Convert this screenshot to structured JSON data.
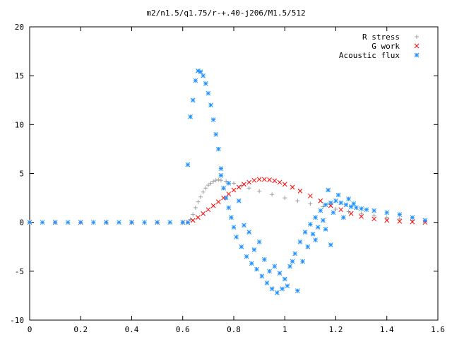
{
  "chart_data": {
    "type": "scatter",
    "title": "m2/n1.5/q1.75/r-+.40-j206/M1.5/512",
    "xlabel": "",
    "ylabel": "",
    "xlim": [
      0,
      1.6
    ],
    "ylim": [
      -10,
      20
    ],
    "x_ticks": [
      "0",
      "0.2",
      "0.4",
      "0.6",
      "0.8",
      "1",
      "1.2",
      "1.4",
      "1.6"
    ],
    "y_ticks": [
      "-10",
      "-5",
      "0",
      "5",
      "10",
      "15",
      "20"
    ],
    "grid": false,
    "legend_position": "top-right",
    "series": [
      {
        "name": "R stress",
        "marker": "plus",
        "color": "#a0a0a0",
        "points": [
          [
            0.0,
            0.0
          ],
          [
            0.1,
            0.0
          ],
          [
            0.2,
            0.0
          ],
          [
            0.3,
            0.0
          ],
          [
            0.4,
            0.0
          ],
          [
            0.5,
            0.0
          ],
          [
            0.6,
            0.0
          ],
          [
            0.62,
            0.0
          ],
          [
            0.63,
            0.3
          ],
          [
            0.64,
            0.8
          ],
          [
            0.65,
            1.5
          ],
          [
            0.66,
            2.1
          ],
          [
            0.67,
            2.6
          ],
          [
            0.68,
            3.1
          ],
          [
            0.69,
            3.5
          ],
          [
            0.7,
            3.8
          ],
          [
            0.71,
            4.0
          ],
          [
            0.72,
            4.2
          ],
          [
            0.73,
            4.3
          ],
          [
            0.74,
            4.35
          ],
          [
            0.75,
            4.3
          ],
          [
            0.77,
            4.2
          ],
          [
            0.8,
            4.0
          ],
          [
            0.83,
            3.75
          ],
          [
            0.86,
            3.5
          ],
          [
            0.9,
            3.2
          ],
          [
            0.95,
            2.85
          ],
          [
            1.0,
            2.5
          ],
          [
            1.05,
            2.2
          ],
          [
            1.1,
            1.9
          ],
          [
            1.15,
            1.6
          ],
          [
            1.2,
            1.35
          ],
          [
            1.25,
            1.1
          ],
          [
            1.3,
            0.9
          ],
          [
            1.35,
            0.7
          ],
          [
            1.4,
            0.5
          ],
          [
            1.45,
            0.35
          ],
          [
            1.5,
            0.2
          ],
          [
            1.55,
            0.1
          ]
        ]
      },
      {
        "name": "G work",
        "marker": "cross",
        "color": "#ff0000",
        "points": [
          [
            0.0,
            0.0
          ],
          [
            0.1,
            0.0
          ],
          [
            0.2,
            0.0
          ],
          [
            0.3,
            0.0
          ],
          [
            0.4,
            0.0
          ],
          [
            0.5,
            0.0
          ],
          [
            0.6,
            0.0
          ],
          [
            0.62,
            0.0
          ],
          [
            0.64,
            0.2
          ],
          [
            0.66,
            0.5
          ],
          [
            0.68,
            0.9
          ],
          [
            0.7,
            1.3
          ],
          [
            0.72,
            1.7
          ],
          [
            0.74,
            2.1
          ],
          [
            0.76,
            2.5
          ],
          [
            0.78,
            2.9
          ],
          [
            0.8,
            3.3
          ],
          [
            0.82,
            3.6
          ],
          [
            0.84,
            3.9
          ],
          [
            0.86,
            4.1
          ],
          [
            0.88,
            4.3
          ],
          [
            0.9,
            4.4
          ],
          [
            0.92,
            4.4
          ],
          [
            0.94,
            4.35
          ],
          [
            0.96,
            4.25
          ],
          [
            0.98,
            4.1
          ],
          [
            1.0,
            3.9
          ],
          [
            1.03,
            3.6
          ],
          [
            1.06,
            3.2
          ],
          [
            1.1,
            2.7
          ],
          [
            1.14,
            2.2
          ],
          [
            1.18,
            1.7
          ],
          [
            1.22,
            1.3
          ],
          [
            1.26,
            0.9
          ],
          [
            1.3,
            0.6
          ],
          [
            1.35,
            0.35
          ],
          [
            1.4,
            0.2
          ],
          [
            1.45,
            0.1
          ],
          [
            1.5,
            0.05
          ],
          [
            1.55,
            0.0
          ]
        ]
      },
      {
        "name": "Acoustic flux",
        "marker": "star",
        "color": "#1e90ff",
        "points": [
          [
            0.0,
            0.0
          ],
          [
            0.05,
            0.0
          ],
          [
            0.1,
            0.0
          ],
          [
            0.15,
            0.0
          ],
          [
            0.2,
            0.0
          ],
          [
            0.25,
            0.0
          ],
          [
            0.3,
            0.0
          ],
          [
            0.35,
            0.0
          ],
          [
            0.4,
            0.0
          ],
          [
            0.45,
            0.0
          ],
          [
            0.5,
            0.0
          ],
          [
            0.55,
            0.0
          ],
          [
            0.6,
            0.0
          ],
          [
            0.62,
            0.0
          ],
          [
            0.62,
            5.9
          ],
          [
            0.63,
            10.8
          ],
          [
            0.64,
            12.5
          ],
          [
            0.65,
            14.5
          ],
          [
            0.66,
            15.5
          ],
          [
            0.67,
            15.4
          ],
          [
            0.68,
            15.0
          ],
          [
            0.69,
            14.2
          ],
          [
            0.7,
            13.2
          ],
          [
            0.71,
            12.0
          ],
          [
            0.72,
            10.5
          ],
          [
            0.73,
            9.0
          ],
          [
            0.74,
            7.5
          ],
          [
            0.75,
            5.5
          ],
          [
            0.75,
            4.8
          ],
          [
            0.76,
            3.5
          ],
          [
            0.77,
            2.5
          ],
          [
            0.78,
            1.5
          ],
          [
            0.79,
            0.5
          ],
          [
            0.8,
            -0.5
          ],
          [
            0.81,
            -1.5
          ],
          [
            0.83,
            -2.5
          ],
          [
            0.85,
            -3.5
          ],
          [
            0.87,
            -4.2
          ],
          [
            0.89,
            -4.8
          ],
          [
            0.91,
            -5.5
          ],
          [
            0.93,
            -6.2
          ],
          [
            0.95,
            -6.8
          ],
          [
            0.97,
            -7.2
          ],
          [
            0.99,
            -6.8
          ],
          [
            1.0,
            -5.8
          ],
          [
            1.02,
            -4.5
          ],
          [
            1.04,
            -3.2
          ],
          [
            1.06,
            -2.0
          ],
          [
            1.08,
            -1.0
          ],
          [
            1.1,
            -0.2
          ],
          [
            1.12,
            0.5
          ],
          [
            1.14,
            1.2
          ],
          [
            1.16,
            1.8
          ],
          [
            1.18,
            2.0
          ],
          [
            1.2,
            2.2
          ],
          [
            1.22,
            2.0
          ],
          [
            1.24,
            1.8
          ],
          [
            1.26,
            1.6
          ],
          [
            1.28,
            1.5
          ],
          [
            1.3,
            1.4
          ],
          [
            1.35,
            1.2
          ],
          [
            1.4,
            1.0
          ],
          [
            1.45,
            0.8
          ],
          [
            1.5,
            0.5
          ],
          [
            1.55,
            0.2
          ],
          [
            0.78,
            4.0
          ],
          [
            0.82,
            2.2
          ],
          [
            0.86,
            -1.0
          ],
          [
            0.88,
            -2.8
          ],
          [
            0.92,
            -3.8
          ],
          [
            0.96,
            -4.5
          ],
          [
            0.98,
            -5.2
          ],
          [
            1.01,
            -6.5
          ],
          [
            1.05,
            -7.0
          ],
          [
            1.07,
            -4.0
          ],
          [
            1.09,
            -2.5
          ],
          [
            1.11,
            -1.2
          ],
          [
            1.13,
            -0.5
          ],
          [
            1.15,
            0.2
          ],
          [
            1.17,
            3.3
          ],
          [
            1.19,
            1.0
          ],
          [
            1.21,
            2.8
          ],
          [
            1.23,
            0.5
          ],
          [
            1.25,
            2.4
          ],
          [
            1.27,
            1.9
          ],
          [
            1.32,
            1.3
          ],
          [
            0.84,
            -0.3
          ],
          [
            0.9,
            -2.0
          ],
          [
            0.94,
            -5.0
          ],
          [
            1.03,
            -4.0
          ],
          [
            1.12,
            -1.8
          ],
          [
            1.16,
            -0.7
          ],
          [
            1.18,
            -2.3
          ]
        ]
      }
    ]
  }
}
